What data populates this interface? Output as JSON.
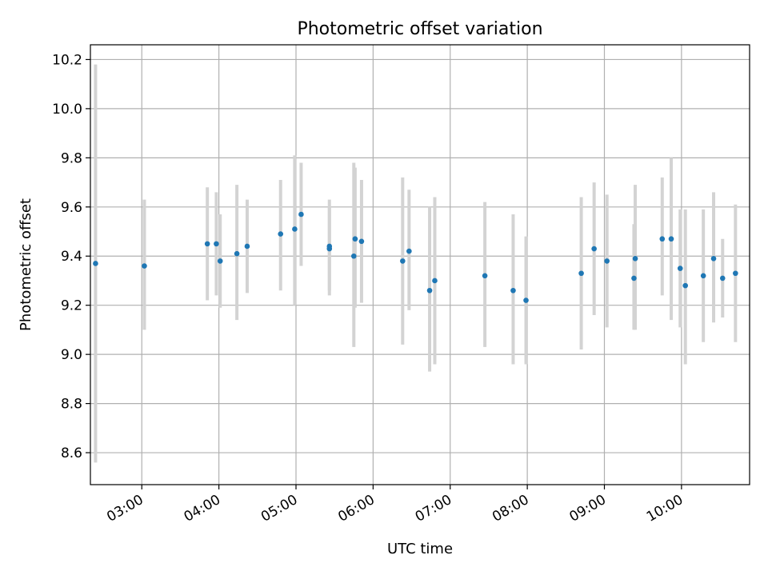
{
  "chart_data": {
    "type": "scatter",
    "title": "Photometric offset variation",
    "xlabel": "UTC time",
    "ylabel": "Photometric offset",
    "x_ticks": [
      "03:00",
      "04:00",
      "05:00",
      "06:00",
      "07:00",
      "08:00",
      "09:00",
      "10:00"
    ],
    "y_ticks": [
      "8.6",
      "8.8",
      "9.0",
      "9.2",
      "9.4",
      "9.6",
      "9.8",
      "10.0",
      "10.2"
    ],
    "xlim": [
      "02:20",
      "10:53"
    ],
    "ylim": [
      8.47,
      10.26
    ],
    "grid": true,
    "point_color": "#1f77b4",
    "errorbar_color": "#d3d3d3",
    "points": [
      {
        "t": "02:24",
        "y": 9.37,
        "lo": 8.56,
        "hi": 10.18
      },
      {
        "t": "03:02",
        "y": 9.36,
        "lo": 9.1,
        "hi": 9.63
      },
      {
        "t": "03:51",
        "y": 9.45,
        "lo": 9.22,
        "hi": 9.68
      },
      {
        "t": "03:58",
        "y": 9.45,
        "lo": 9.24,
        "hi": 9.66
      },
      {
        "t": "04:01",
        "y": 9.38,
        "lo": 9.19,
        "hi": 9.57
      },
      {
        "t": "04:14",
        "y": 9.41,
        "lo": 9.14,
        "hi": 9.69
      },
      {
        "t": "04:22",
        "y": 9.44,
        "lo": 9.25,
        "hi": 9.63
      },
      {
        "t": "04:48",
        "y": 9.49,
        "lo": 9.26,
        "hi": 9.71
      },
      {
        "t": "04:59",
        "y": 9.51,
        "lo": 9.2,
        "hi": 9.81
      },
      {
        "t": "05:04",
        "y": 9.57,
        "lo": 9.36,
        "hi": 9.78
      },
      {
        "t": "05:26",
        "y": 9.44,
        "lo": 9.24,
        "hi": 9.63
      },
      {
        "t": "05:26",
        "y": 9.43,
        "lo": 9.26,
        "hi": 9.6
      },
      {
        "t": "05:45",
        "y": 9.4,
        "lo": 9.03,
        "hi": 9.78
      },
      {
        "t": "05:46",
        "y": 9.47,
        "lo": 9.19,
        "hi": 9.76
      },
      {
        "t": "05:51",
        "y": 9.46,
        "lo": 9.21,
        "hi": 9.71
      },
      {
        "t": "06:23",
        "y": 9.38,
        "lo": 9.04,
        "hi": 9.72
      },
      {
        "t": "06:28",
        "y": 9.42,
        "lo": 9.18,
        "hi": 9.67
      },
      {
        "t": "06:44",
        "y": 9.26,
        "lo": 8.93,
        "hi": 9.6
      },
      {
        "t": "06:48",
        "y": 9.3,
        "lo": 8.96,
        "hi": 9.64
      },
      {
        "t": "07:27",
        "y": 9.32,
        "lo": 9.03,
        "hi": 9.62
      },
      {
        "t": "07:49",
        "y": 9.26,
        "lo": 8.96,
        "hi": 9.57
      },
      {
        "t": "07:59",
        "y": 9.22,
        "lo": 8.96,
        "hi": 9.48
      },
      {
        "t": "08:42",
        "y": 9.33,
        "lo": 9.02,
        "hi": 9.64
      },
      {
        "t": "08:52",
        "y": 9.43,
        "lo": 9.16,
        "hi": 9.7
      },
      {
        "t": "09:02",
        "y": 9.38,
        "lo": 9.11,
        "hi": 9.65
      },
      {
        "t": "09:23",
        "y": 9.31,
        "lo": 9.1,
        "hi": 9.53
      },
      {
        "t": "09:24",
        "y": 9.39,
        "lo": 9.1,
        "hi": 9.69
      },
      {
        "t": "09:45",
        "y": 9.47,
        "lo": 9.24,
        "hi": 9.72
      },
      {
        "t": "09:52",
        "y": 9.47,
        "lo": 9.14,
        "hi": 9.8
      },
      {
        "t": "09:59",
        "y": 9.35,
        "lo": 9.11,
        "hi": 9.59
      },
      {
        "t": "10:03",
        "y": 9.28,
        "lo": 8.96,
        "hi": 9.59
      },
      {
        "t": "10:17",
        "y": 9.32,
        "lo": 9.05,
        "hi": 9.59
      },
      {
        "t": "10:25",
        "y": 9.39,
        "lo": 9.13,
        "hi": 9.66
      },
      {
        "t": "10:32",
        "y": 9.31,
        "lo": 9.15,
        "hi": 9.47
      },
      {
        "t": "10:42",
        "y": 9.33,
        "lo": 9.05,
        "hi": 9.61
      }
    ]
  }
}
